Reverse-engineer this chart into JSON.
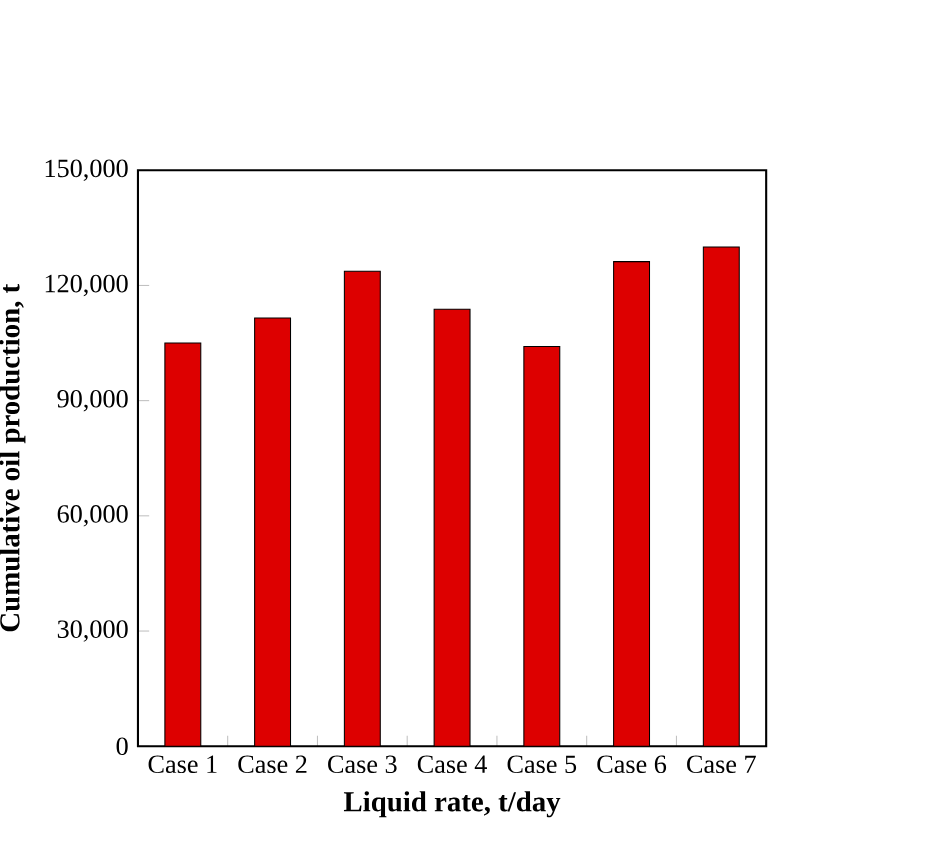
{
  "chart_data": {
    "type": "bar",
    "xlabel": "Liquid rate, t/day",
    "ylabel": "Cumulative oil production, t",
    "categories": [
      "Case 1",
      "Case 2",
      "Case 3",
      "Case 4",
      "Case 5",
      "Case 6",
      "Case 7"
    ],
    "values": [
      105000,
      111500,
      123700,
      113800,
      104100,
      126200,
      130000
    ],
    "color": "#dd0000",
    "ylim": [
      0,
      150000
    ],
    "yticks": [
      {
        "value": 0,
        "label": "0"
      },
      {
        "value": 30000,
        "label": "30,000"
      },
      {
        "value": 60000,
        "label": "60,000"
      },
      {
        "value": 90000,
        "label": "90,000"
      },
      {
        "value": 120000,
        "label": "120,000"
      },
      {
        "value": 150000,
        "label": "150,000"
      }
    ]
  }
}
